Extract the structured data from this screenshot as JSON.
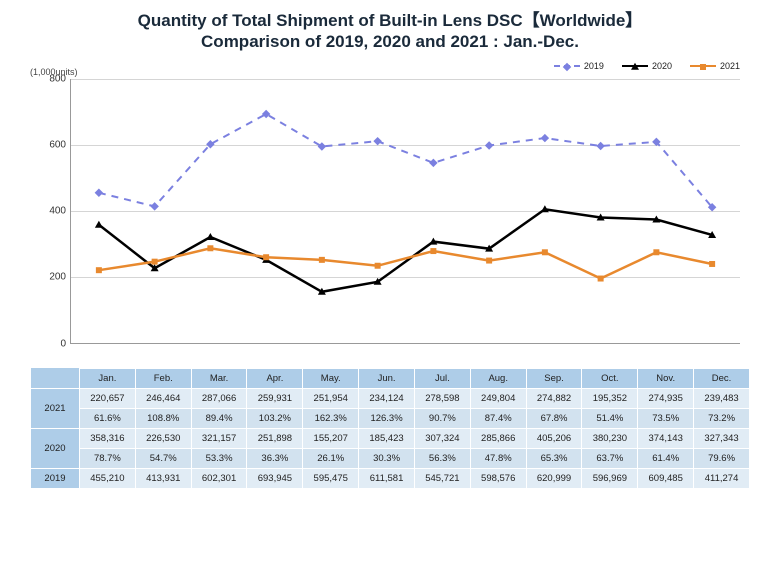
{
  "title": {
    "line1": "Quantity of Total Shipment of Built-in Lens DSC【Worldwide】",
    "line2": "Comparison of 2019, 2020 and 2021 : Jan.-Dec.",
    "fontsize": 17,
    "color": "#1a2a3a"
  },
  "chart": {
    "type": "line",
    "y_unit_label": "(1,000units)",
    "y_unit_fontsize": 9,
    "ylim": [
      0,
      800
    ],
    "yticks": [
      0,
      200,
      400,
      600,
      800
    ],
    "grid_color": "#d5d5d5",
    "background_color": "#ffffff",
    "categories": [
      "Jan.",
      "Feb.",
      "Mar.",
      "Apr.",
      "May.",
      "Jun.",
      "Jul.",
      "Aug.",
      "Sep.",
      "Oct.",
      "Nov.",
      "Dec."
    ],
    "legend": {
      "position": "top-right",
      "items": [
        {
          "label": "2019",
          "color": "#7b80e0",
          "style": "dashed",
          "marker": "diamond",
          "width": 2
        },
        {
          "label": "2020",
          "color": "#000000",
          "style": "solid",
          "marker": "triangle",
          "width": 2.5
        },
        {
          "label": "2021",
          "color": "#e8892e",
          "style": "solid",
          "marker": "square",
          "width": 2.5
        }
      ]
    },
    "series": {
      "2019": [
        455.21,
        413.931,
        602.301,
        693.945,
        595.475,
        611.581,
        545.721,
        598.576,
        620.999,
        596.969,
        609.485,
        411.274
      ],
      "2020": [
        358.316,
        226.53,
        321.157,
        251.898,
        155.207,
        185.423,
        307.324,
        285.866,
        405.206,
        380.23,
        374.143,
        327.343
      ],
      "2021": [
        220.657,
        246.464,
        287.066,
        259.931,
        251.954,
        234.124,
        278.598,
        249.804,
        274.882,
        195.352,
        274.935,
        239.483
      ]
    }
  },
  "table": {
    "header_bg": "#aecde8",
    "rowA_bg": "#e1ecf5",
    "rowB_bg": "#d2e2ef",
    "columns": [
      "Jan.",
      "Feb.",
      "Mar.",
      "Apr.",
      "May.",
      "Jun.",
      "Jul.",
      "Aug.",
      "Sep.",
      "Oct.",
      "Nov.",
      "Dec."
    ],
    "rows": [
      {
        "head": "2021",
        "span": 2,
        "cells": [
          [
            "220,657",
            "246,464",
            "287,066",
            "259,931",
            "251,954",
            "234,124",
            "278,598",
            "249,804",
            "274,882",
            "195,352",
            "274,935",
            "239,483"
          ],
          [
            "61.6%",
            "108.8%",
            "89.4%",
            "103.2%",
            "162.3%",
            "126.3%",
            "90.7%",
            "87.4%",
            "67.8%",
            "51.4%",
            "73.5%",
            "73.2%"
          ]
        ]
      },
      {
        "head": "2020",
        "span": 2,
        "cells": [
          [
            "358,316",
            "226,530",
            "321,157",
            "251,898",
            "155,207",
            "185,423",
            "307,324",
            "285,866",
            "405,206",
            "380,230",
            "374,143",
            "327,343"
          ],
          [
            "78.7%",
            "54.7%",
            "53.3%",
            "36.3%",
            "26.1%",
            "30.3%",
            "56.3%",
            "47.8%",
            "65.3%",
            "63.7%",
            "61.4%",
            "79.6%"
          ]
        ]
      },
      {
        "head": "2019",
        "span": 1,
        "cells": [
          [
            "455,210",
            "413,931",
            "602,301",
            "693,945",
            "595,475",
            "611,581",
            "545,721",
            "598,576",
            "620,999",
            "596,969",
            "609,485",
            "411,274"
          ]
        ]
      }
    ]
  }
}
